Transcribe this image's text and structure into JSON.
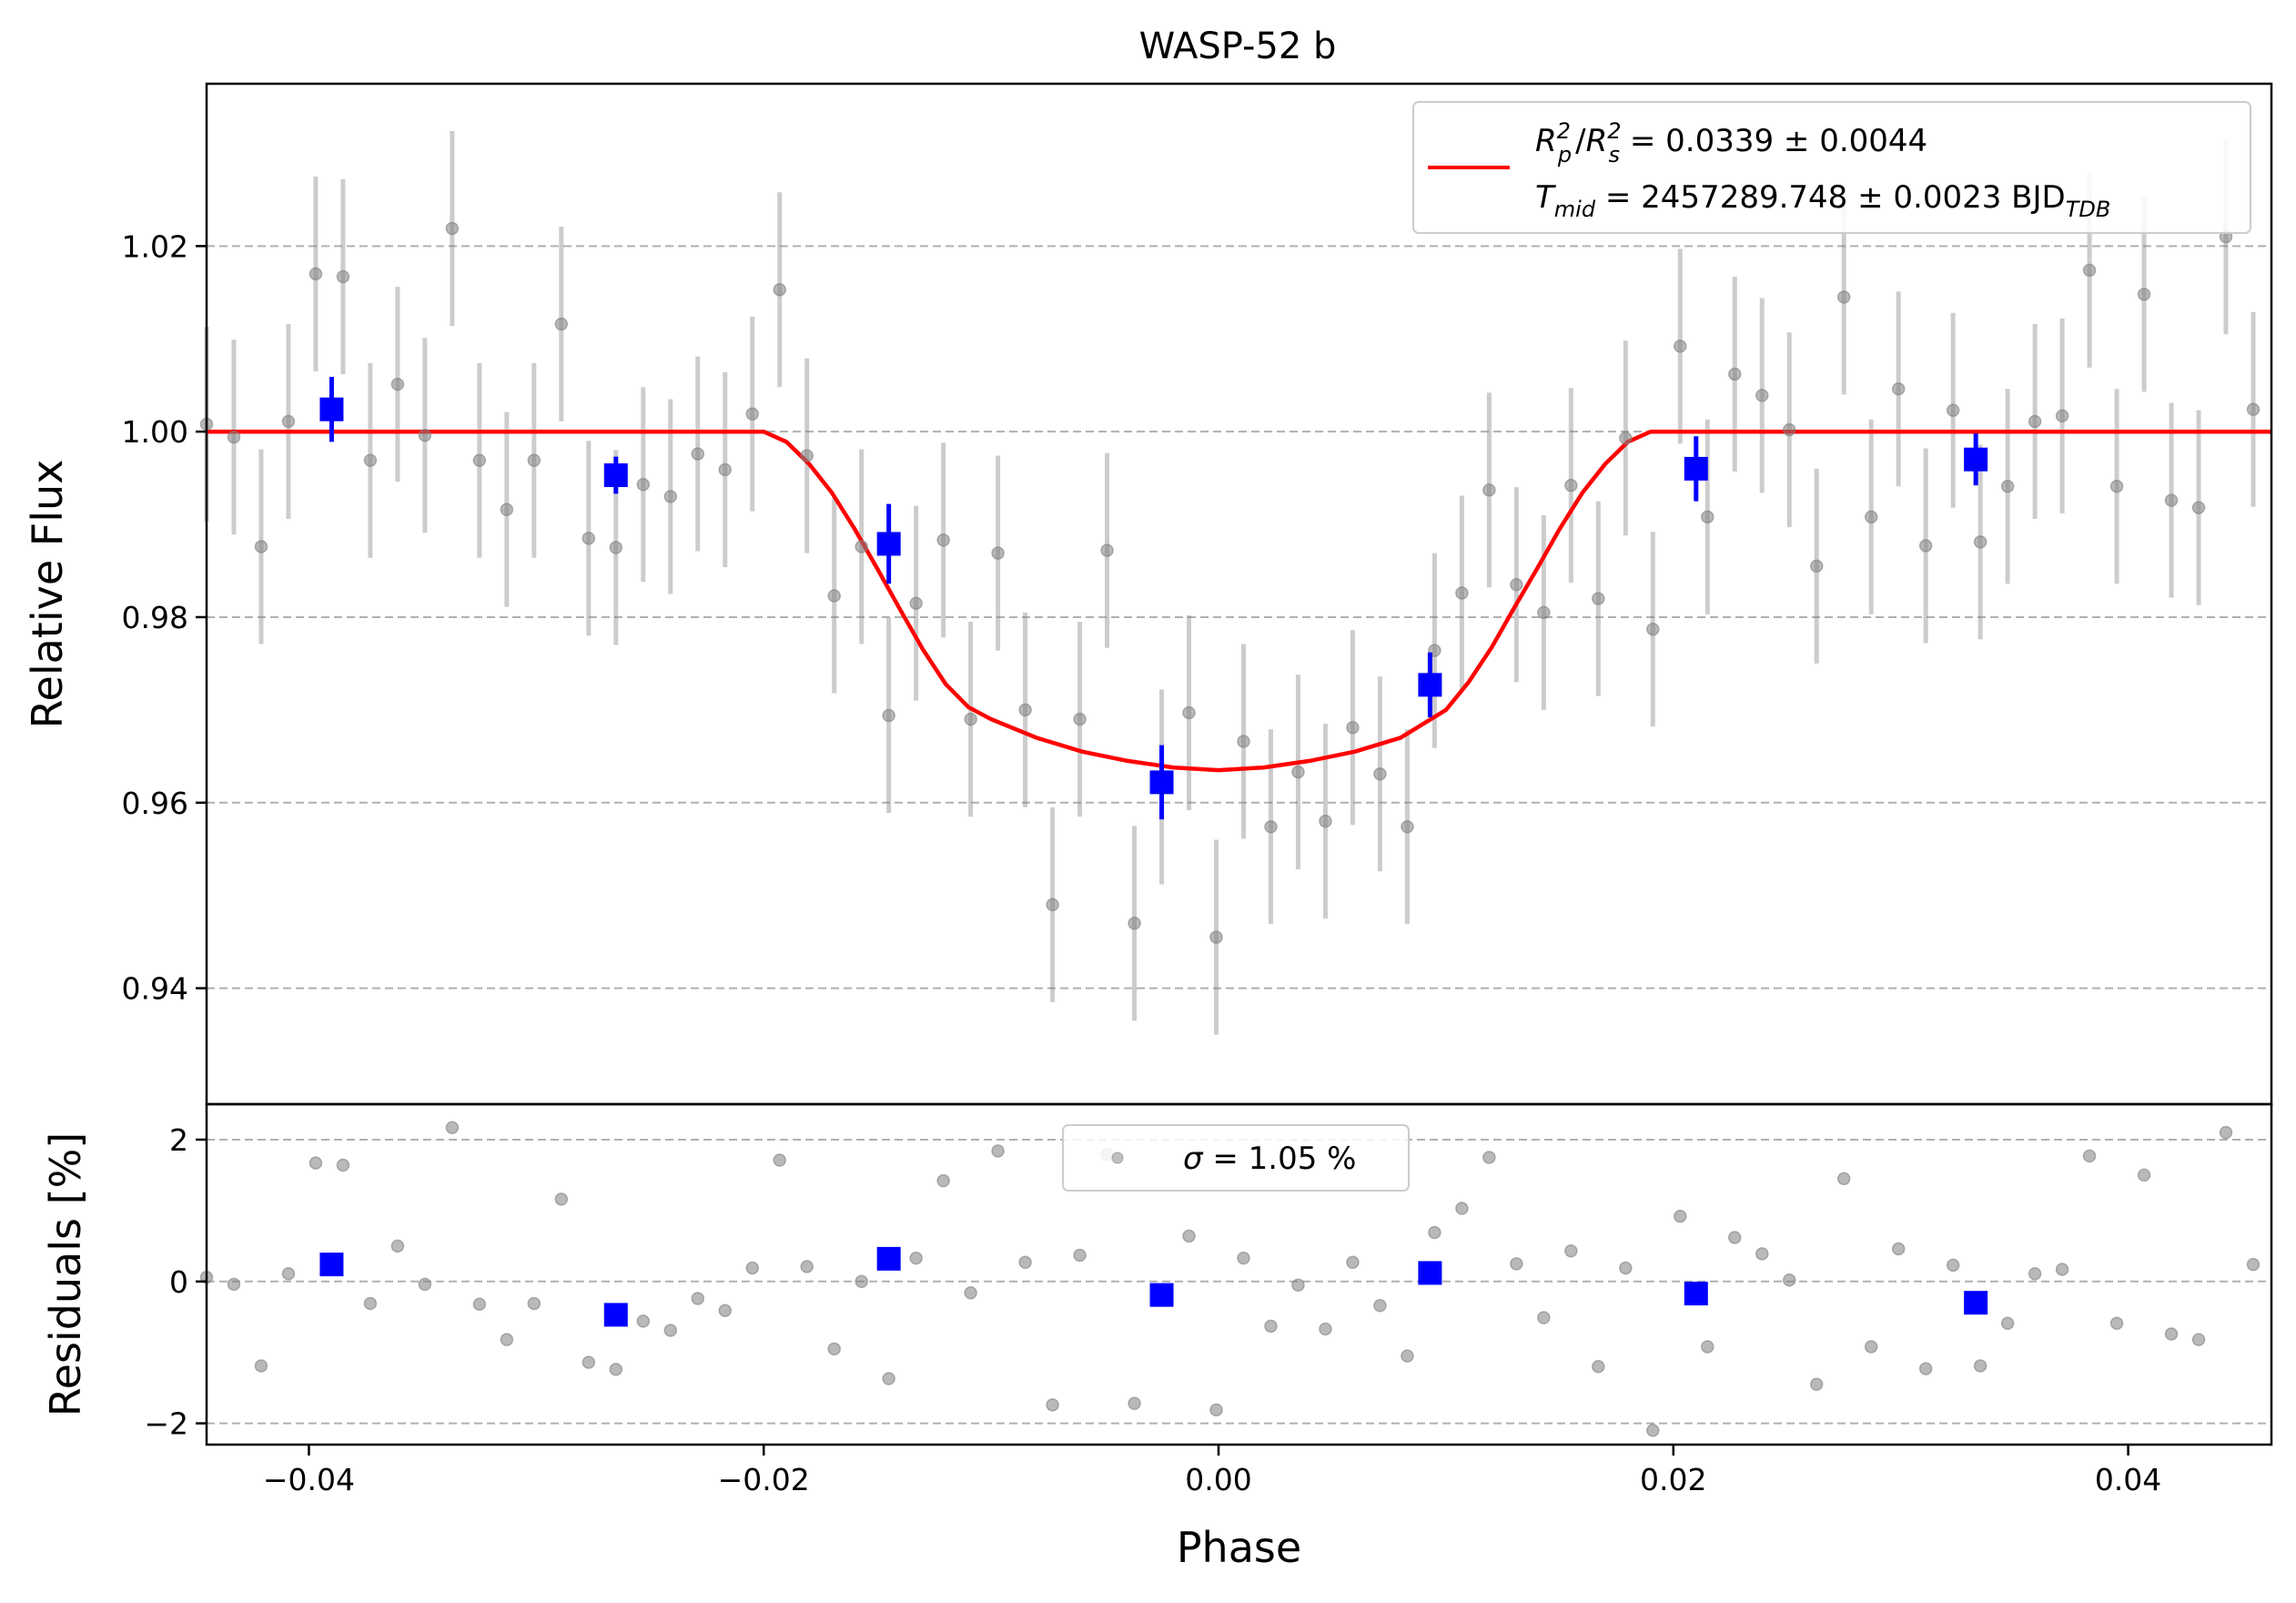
{
  "chart_data": {
    "type": "scatter",
    "title": "WASP-52 b",
    "xlabel": "Phase",
    "xlim": [
      -0.0445,
      0.0463
    ],
    "x_ticks": [
      -0.04,
      -0.02,
      0.0,
      0.02,
      0.04
    ],
    "x_tick_labels": [
      "−0.04",
      "−0.02",
      "0.00",
      "0.02",
      "0.04"
    ],
    "grid": "horizontal dashed",
    "colors": {
      "raw": "#808080",
      "binned": "#0000ff",
      "model": "#ff0000",
      "grid": "#b0b0b0"
    },
    "top_panel": {
      "ylabel": "Relative Flux",
      "ylim": [
        0.9275,
        1.0375
      ],
      "y_ticks": [
        0.94,
        0.96,
        0.98,
        1.0,
        1.02
      ],
      "y_tick_labels": [
        "0.94",
        "0.96",
        "0.98",
        "1.00",
        "1.02"
      ],
      "legend_placement": "top-right",
      "legend": {
        "line1_lhs_a": "R",
        "line1_sub_a": "p",
        "line1_sup_a": "2",
        "line1_slash": "/",
        "line1_lhs_b": "R",
        "line1_sub_b": "s",
        "line1_sup_b": "2",
        "line1_rhs": " = 0.0339 ± 0.0044",
        "line2_lhs": "T",
        "line2_sub": "mid",
        "line2_rhs": " = 2457289.748 ± 0.0023 BJD",
        "line2_tail_sub": "TDB"
      },
      "model": {
        "name": "transit model",
        "x": [
          -0.0445,
          -0.02,
          -0.019,
          -0.018,
          -0.017,
          -0.016,
          -0.015,
          -0.014,
          -0.013,
          -0.012,
          -0.011,
          -0.01,
          -0.008,
          -0.006,
          -0.004,
          -0.002,
          0.0,
          0.002,
          0.004,
          0.006,
          0.008,
          0.01,
          0.011,
          0.012,
          0.013,
          0.014,
          0.015,
          0.016,
          0.017,
          0.018,
          0.019,
          0.02,
          0.0463
        ],
        "y": [
          1.0,
          1.0,
          0.9989,
          0.9965,
          0.9934,
          0.9895,
          0.9852,
          0.9808,
          0.9765,
          0.9728,
          0.9703,
          0.969,
          0.967,
          0.9655,
          0.9645,
          0.9638,
          0.9635,
          0.9638,
          0.9645,
          0.9655,
          0.967,
          0.97,
          0.973,
          0.9767,
          0.981,
          0.9852,
          0.9895,
          0.9934,
          0.9965,
          0.9989,
          1.0,
          1.0,
          1.0
        ]
      },
      "raw": {
        "x": [
          -0.0445,
          -0.0433,
          -0.0421,
          -0.0409,
          -0.0397,
          -0.0385,
          -0.0373,
          -0.0361,
          -0.0349,
          -0.0337,
          -0.0325,
          -0.0313,
          -0.0301,
          -0.0289,
          -0.0277,
          -0.0265,
          -0.0253,
          -0.0241,
          -0.0229,
          -0.0217,
          -0.0205,
          -0.0193,
          -0.0181,
          -0.0169,
          -0.0157,
          -0.0145,
          -0.0133,
          -0.0121,
          -0.0109,
          -0.0097,
          -0.0085,
          -0.0073,
          -0.0061,
          -0.0049,
          -0.0037,
          -0.0025,
          -0.0013,
          -0.0001,
          0.0011,
          0.0023,
          0.0035,
          0.0047,
          0.0059,
          0.0071,
          0.0083,
          0.0095,
          0.0107,
          0.0119,
          0.0131,
          0.0143,
          0.0155,
          0.0167,
          0.0179,
          0.0191,
          0.0203,
          0.0215,
          0.0227,
          0.0239,
          0.0251,
          0.0263,
          0.0275,
          0.0287,
          0.0299,
          0.0311,
          0.0323,
          0.0335,
          0.0347,
          0.0359,
          0.0371,
          0.0383,
          0.0395,
          0.0407,
          0.0419,
          0.0431,
          0.0443,
          0.0455
        ],
        "y": [
          1.0008,
          0.9994,
          0.9876,
          1.0011,
          1.017,
          1.0167,
          0.9969,
          1.0051,
          0.9996,
          1.0219,
          0.9969,
          0.9916,
          0.9969,
          1.0116,
          0.9885,
          0.9875,
          0.9943,
          0.993,
          0.9976,
          0.9959,
          1.0019,
          1.0153,
          0.9974,
          0.9823,
          0.9876,
          0.9694,
          0.9815,
          0.9883,
          0.969,
          0.9869,
          0.97,
          0.949,
          0.969,
          0.9872,
          0.947,
          0.9617,
          0.9697,
          0.9455,
          0.9666,
          0.9574,
          0.9633,
          0.958,
          0.9681,
          0.9631,
          0.9574,
          0.9764,
          0.9826,
          0.9937,
          0.9835,
          0.9805,
          0.9942,
          0.982,
          0.9993,
          0.9787,
          1.0092,
          0.9908,
          1.0062,
          1.0039,
          1.0002,
          0.9855,
          1.0145,
          0.9908,
          1.0046,
          0.9877,
          1.0023,
          0.9881,
          0.9941,
          1.0011,
          1.0017,
          1.0174,
          0.9941,
          1.0148,
          0.9926,
          0.9918,
          1.021,
          1.0024
        ]
      },
      "binned": {
        "x": [
          -0.039,
          -0.0265,
          -0.0145,
          -0.0025,
          0.0093,
          0.021,
          0.0333
        ],
        "y": [
          1.0024,
          0.9953,
          0.9879,
          0.9622,
          0.9727,
          0.996,
          0.997
        ],
        "yerr": [
          0.0035,
          0.002,
          0.0043,
          0.004,
          0.0035,
          0.0035,
          0.0028
        ]
      },
      "raw_error": 0.0105
    },
    "bottom_panel": {
      "ylabel": "Residuals [%]",
      "ylim": [
        -2.3,
        2.5
      ],
      "y_ticks": [
        -2,
        0,
        2
      ],
      "y_tick_labels": [
        "−2",
        "0",
        "2"
      ],
      "legend_placement": "top-center",
      "legend": {
        "sigma": "σ",
        "text": " = 1.05 %"
      },
      "raw_residuals": [
        0.06,
        -0.04,
        -1.19,
        0.11,
        1.67,
        1.64,
        -0.31,
        0.5,
        -0.04,
        2.17,
        -0.32,
        -0.82,
        -0.31,
        1.16,
        -1.14,
        -1.24,
        -0.56,
        -0.69,
        -0.24,
        -0.41,
        0.19,
        1.71,
        0.21,
        -0.95,
        0.0,
        -1.37,
        0.33,
        1.42,
        -0.16,
        1.84,
        0.27,
        -1.74,
        0.37,
        1.79,
        -1.72,
        -0.22,
        0.64,
        -1.81,
        0.33,
        -0.63,
        -0.05,
        -0.67,
        0.27,
        -0.34,
        -1.05,
        0.69,
        1.03,
        1.75,
        0.25,
        -0.51,
        0.43,
        -1.2,
        0.19,
        -2.1,
        0.92,
        -0.92,
        0.62,
        0.39,
        0.02,
        -1.45,
        1.45,
        -0.92,
        0.46,
        -1.23,
        0.23,
        -1.19,
        -0.59,
        0.11,
        0.17,
        1.77,
        -0.59,
        1.5,
        -0.74,
        -0.82,
        2.1,
        0.24
      ],
      "binned_residuals": [
        0.24,
        -0.47,
        0.32,
        -0.19,
        0.12,
        -0.17,
        -0.3
      ]
    }
  }
}
